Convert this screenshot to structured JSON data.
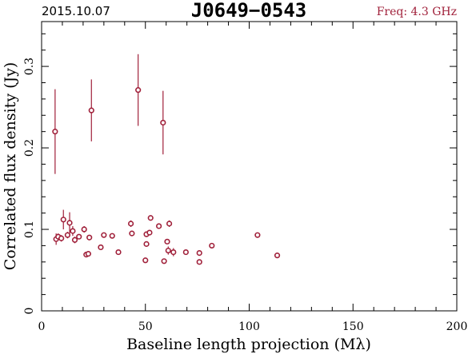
{
  "header": {
    "date": "2015.10.07",
    "source": "J0649−0543",
    "freq": "Freq: 4.3 GHz"
  },
  "colors": {
    "marker": "#a0203a",
    "axis": "#000000",
    "background": "#ffffff"
  },
  "chart_data": {
    "type": "scatter",
    "xlabel": "Baseline length projection (Mλ)",
    "ylabel": "Correlated flux density (Jy)",
    "xlim": [
      0,
      200
    ],
    "ylim": [
      0,
      0.355
    ],
    "xticks": [
      0,
      50,
      100,
      150,
      200
    ],
    "xtick_labels": [
      "0",
      "50",
      "100",
      "150",
      "200"
    ],
    "yticks": [
      0,
      0.1,
      0.2,
      0.3
    ],
    "ytick_labels": [
      "0",
      "0.1",
      "0.2",
      "0.3"
    ],
    "grid": false,
    "series": [
      {
        "marker": "open-circle",
        "points": [
          {
            "x": 6.5,
            "y": 0.22,
            "err": 0.052
          },
          {
            "x": 24.0,
            "y": 0.246,
            "err": 0.038
          },
          {
            "x": 46.5,
            "y": 0.271,
            "err": 0.044
          },
          {
            "x": 58.5,
            "y": 0.231,
            "err": 0.039
          },
          {
            "x": 7.0,
            "y": 0.088,
            "err": 0.007
          },
          {
            "x": 8.0,
            "y": 0.091,
            "err": 0.004
          },
          {
            "x": 9.5,
            "y": 0.089,
            "err": 0.004
          },
          {
            "x": 10.5,
            "y": 0.112,
            "err": 0.012
          },
          {
            "x": 12.5,
            "y": 0.093,
            "err": 0.004
          },
          {
            "x": 13.5,
            "y": 0.108,
            "err": 0.013
          },
          {
            "x": 15.0,
            "y": 0.098,
            "err": 0.006
          },
          {
            "x": 16.0,
            "y": 0.087,
            "err": 0.004
          },
          {
            "x": 18.0,
            "y": 0.091,
            "err": 0.003
          },
          {
            "x": 20.5,
            "y": 0.1,
            "err": 0.004
          },
          {
            "x": 21.5,
            "y": 0.069,
            "err": 0.003
          },
          {
            "x": 22.5,
            "y": 0.07,
            "err": 0.003
          },
          {
            "x": 23.0,
            "y": 0.09,
            "err": 0.003
          },
          {
            "x": 28.5,
            "y": 0.078,
            "err": 0.003
          },
          {
            "x": 30.0,
            "y": 0.093,
            "err": 0.003
          },
          {
            "x": 34.0,
            "y": 0.092,
            "err": 0.003
          },
          {
            "x": 37.0,
            "y": 0.072,
            "err": 0.003
          },
          {
            "x": 43.0,
            "y": 0.107,
            "err": 0.004
          },
          {
            "x": 43.5,
            "y": 0.095,
            "err": 0.003
          },
          {
            "x": 50.0,
            "y": 0.062,
            "err": 0.003
          },
          {
            "x": 50.5,
            "y": 0.094,
            "err": 0.003
          },
          {
            "x": 50.5,
            "y": 0.082,
            "err": 0.003
          },
          {
            "x": 52.0,
            "y": 0.096,
            "err": 0.003
          },
          {
            "x": 52.5,
            "y": 0.114,
            "err": 0.003
          },
          {
            "x": 56.5,
            "y": 0.104,
            "err": 0.003
          },
          {
            "x": 59.0,
            "y": 0.061,
            "err": 0.003
          },
          {
            "x": 60.5,
            "y": 0.085,
            "err": 0.003
          },
          {
            "x": 61.0,
            "y": 0.074,
            "err": 0.005
          },
          {
            "x": 61.5,
            "y": 0.107,
            "err": 0.004
          },
          {
            "x": 63.5,
            "y": 0.072,
            "err": 0.005
          },
          {
            "x": 69.5,
            "y": 0.072,
            "err": 0.003
          },
          {
            "x": 76.0,
            "y": 0.06,
            "err": 0.003
          },
          {
            "x": 76.0,
            "y": 0.071,
            "err": 0.003
          },
          {
            "x": 82.0,
            "y": 0.08,
            "err": 0.003
          },
          {
            "x": 104.0,
            "y": 0.093,
            "err": 0.003
          },
          {
            "x": 113.5,
            "y": 0.068,
            "err": 0.003
          }
        ]
      }
    ]
  }
}
